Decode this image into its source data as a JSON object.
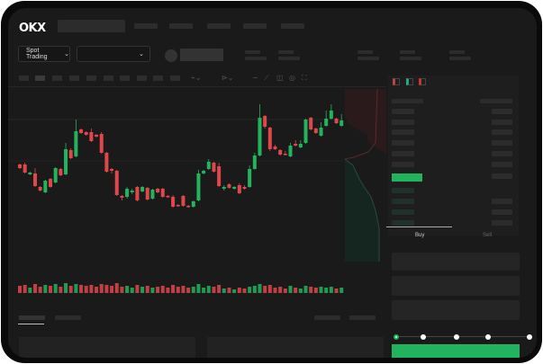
{
  "brand": {
    "logo": "OKX"
  },
  "toolbar": {
    "market_select": "Spot Trading",
    "pair_select_icon": "chevron-down-icon"
  },
  "order_form": {
    "tabs": [
      "Buy",
      "Sell"
    ],
    "active_tab": "Buy",
    "leverage_slider_value": 0
  },
  "colors": {
    "up": "#22b35e",
    "down": "#e0474c",
    "background": "#1a1a1a",
    "accent": "#22b35e"
  },
  "chart_data": {
    "type": "candlestick",
    "candles": [
      [
        118,
        114,
        119,
        113
      ],
      [
        118,
        109,
        120,
        108
      ],
      [
        107,
        109,
        110,
        106
      ],
      [
        108,
        94,
        114,
        93
      ],
      [
        93,
        89,
        94,
        88
      ],
      [
        87,
        100,
        101,
        86
      ],
      [
        102,
        93,
        103,
        92
      ],
      [
        98,
        114,
        115,
        97
      ],
      [
        113,
        106,
        114,
        105
      ],
      [
        107,
        135,
        142,
        106
      ],
      [
        134,
        125,
        136,
        124
      ],
      [
        127,
        155,
        168,
        126
      ],
      [
        157,
        153,
        158,
        152
      ],
      [
        154,
        151,
        155,
        150
      ],
      [
        154,
        144,
        158,
        143
      ],
      [
        151,
        149,
        152,
        148
      ],
      [
        152,
        131,
        154,
        130
      ],
      [
        131,
        110,
        132,
        109
      ],
      [
        113,
        111,
        114,
        108
      ],
      [
        111,
        84,
        112,
        83
      ],
      [
        83,
        81,
        84,
        78
      ],
      [
        82,
        91,
        93,
        80
      ],
      [
        87,
        89,
        91,
        85
      ],
      [
        93,
        78,
        94,
        77
      ],
      [
        88,
        93,
        94,
        87
      ],
      [
        92,
        79,
        93,
        78
      ],
      [
        80,
        90,
        91,
        79
      ],
      [
        91,
        87,
        92,
        86
      ],
      [
        91,
        82,
        92,
        81
      ],
      [
        83,
        82,
        84,
        81
      ],
      [
        82,
        71,
        84,
        70
      ],
      [
        73,
        72,
        74,
        71
      ],
      [
        83,
        72,
        84,
        71
      ],
      [
        72,
        71,
        73,
        70
      ],
      [
        71,
        77,
        78,
        70
      ],
      [
        78,
        108,
        112,
        77
      ],
      [
        108,
        111,
        112,
        107
      ],
      [
        113,
        121,
        124,
        112
      ],
      [
        120,
        110,
        121,
        109
      ],
      [
        116,
        94,
        120,
        93
      ],
      [
        91,
        93,
        95,
        89
      ],
      [
        96,
        92,
        97,
        91
      ],
      [
        91,
        93,
        94,
        90
      ],
      [
        95,
        86,
        97,
        85
      ],
      [
        93,
        91,
        95,
        90
      ],
      [
        93,
        113,
        117,
        92
      ],
      [
        113,
        128,
        131,
        112
      ],
      [
        128,
        170,
        185,
        127
      ],
      [
        172,
        160,
        173,
        158
      ],
      [
        159,
        135,
        160,
        133
      ],
      [
        138,
        135,
        140,
        134
      ],
      [
        134,
        129,
        135,
        128
      ],
      [
        130,
        129,
        133,
        128
      ],
      [
        127,
        139,
        142,
        126
      ],
      [
        141,
        139,
        145,
        138
      ],
      [
        137,
        141,
        145,
        136
      ],
      [
        142,
        168,
        169,
        141
      ],
      [
        170,
        157,
        171,
        156
      ],
      [
        158,
        153,
        159,
        152
      ],
      [
        150,
        159,
        165,
        149
      ],
      [
        161,
        169,
        178,
        160
      ],
      [
        169,
        178,
        185,
        168
      ],
      [
        169,
        164,
        170,
        163
      ],
      [
        161,
        167,
        174,
        160
      ]
    ],
    "volumes": [
      8,
      9,
      6,
      10,
      7,
      9,
      8,
      10,
      7,
      11,
      8,
      10,
      9,
      8,
      9,
      7,
      10,
      9,
      8,
      11,
      7,
      8,
      6,
      9,
      7,
      8,
      6,
      7,
      8,
      6,
      9,
      7,
      8,
      6,
      7,
      10,
      6,
      8,
      7,
      9,
      5,
      6,
      4,
      6,
      5,
      7,
      8,
      10,
      8,
      9,
      6,
      7,
      5,
      8,
      6,
      5,
      8,
      7,
      6,
      7,
      6,
      7,
      5,
      6
    ]
  }
}
